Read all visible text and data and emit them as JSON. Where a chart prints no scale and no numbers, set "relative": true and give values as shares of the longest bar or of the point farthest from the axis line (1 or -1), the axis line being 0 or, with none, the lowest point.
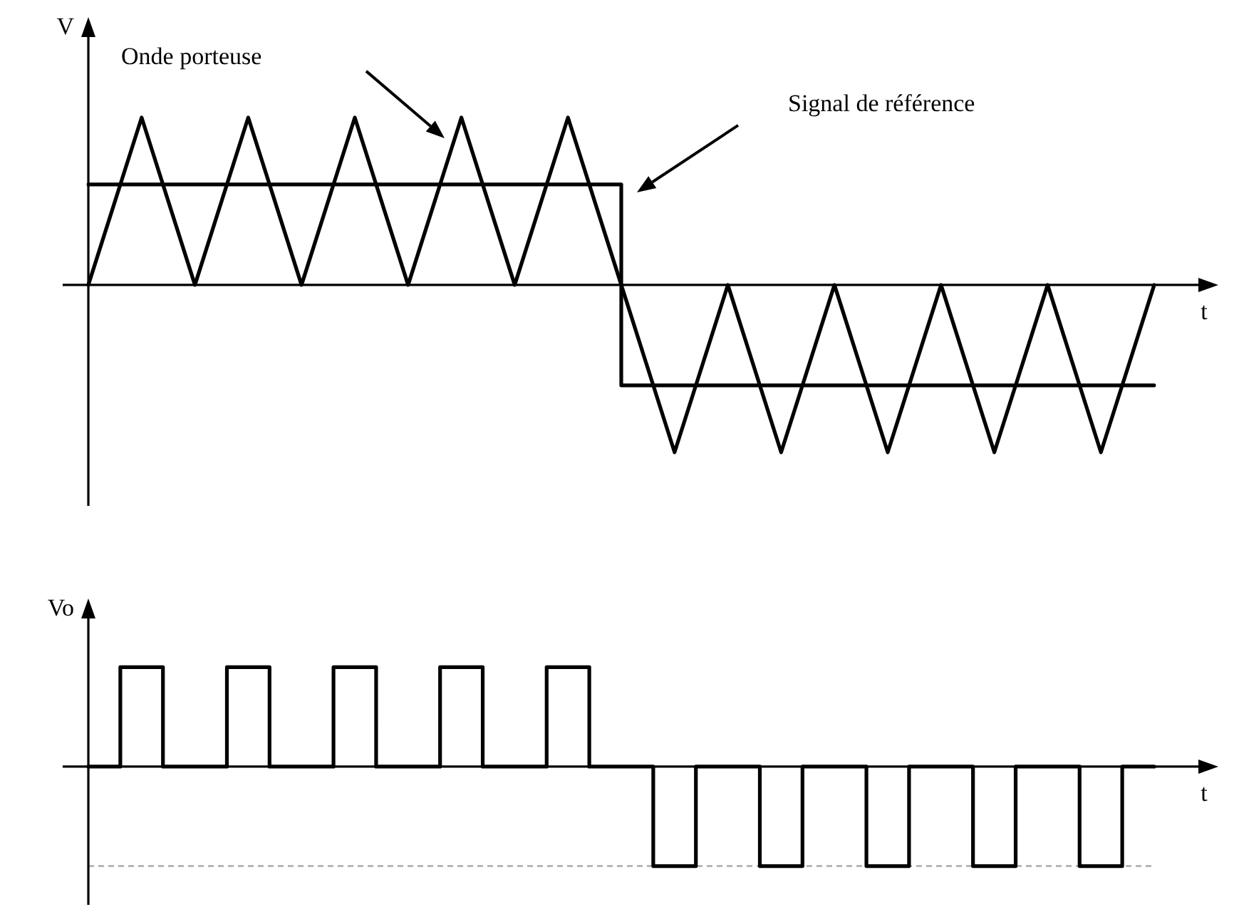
{
  "chart_data": [
    {
      "type": "line",
      "relative": true,
      "ylabel": "V",
      "xlabel": "t",
      "tick_labels": false,
      "marker": "none",
      "categories": [
        null,
        null,
        null,
        null,
        null,
        null,
        null,
        null,
        null,
        null,
        null,
        null,
        null,
        null,
        null,
        null,
        null,
        null,
        null,
        null,
        null
      ],
      "series": [
        {
          "color": "#000000",
          "values": [
            0,
            1,
            0,
            1,
            0,
            1,
            0,
            1,
            0,
            1,
            0,
            -1,
            0,
            -1,
            0,
            -1,
            0,
            -1,
            0,
            -1,
            0
          ]
        },
        {
          "type": "step",
          "color": "#000000",
          "values": [
            0.6,
            0.6,
            0.6,
            0.6,
            0.6,
            0.6,
            0.6,
            0.6,
            0.6,
            0.6,
            -0.6,
            -0.6,
            -0.6,
            -0.6,
            -0.6,
            -0.6,
            -0.6,
            -0.6,
            -0.6,
            -0.6,
            -0.6
          ]
        }
      ],
      "annotations": [
        "Onde porteuse",
        "Signal de référence"
      ]
    },
    {
      "type": "step",
      "relative": true,
      "ylabel": "Vo",
      "xlabel": "t",
      "tick_labels": false,
      "marker": "none",
      "categories": [
        null,
        null,
        null,
        null,
        null,
        null,
        null,
        null,
        null,
        null,
        null,
        null,
        null,
        null,
        null,
        null,
        null,
        null,
        null,
        null,
        null,
        null,
        null,
        null,
        null,
        null,
        null,
        null,
        null,
        null,
        null,
        null,
        null,
        null,
        null,
        null,
        null,
        null,
        null,
        null,
        null,
        null,
        null,
        null,
        null,
        null,
        null,
        null,
        null,
        null,
        null,
        null,
        null,
        null,
        null,
        null,
        null,
        null,
        null,
        null,
        null,
        null,
        null,
        null,
        null,
        null,
        null,
        null,
        null,
        null,
        null,
        null,
        null,
        null,
        null,
        null,
        null,
        null,
        null,
        null,
        null,
        null,
        null,
        null,
        null,
        null,
        null,
        null,
        null,
        null,
        null,
        null,
        null,
        null,
        null,
        null,
        null,
        null,
        null,
        null,
        null
      ],
      "series": [
        {
          "color": "#000000",
          "values": [
            0,
            0,
            0,
            1,
            1,
            1,
            1,
            0,
            0,
            0,
            0,
            0,
            0,
            1,
            1,
            1,
            1,
            0,
            0,
            0,
            0,
            0,
            0,
            1,
            1,
            1,
            1,
            0,
            0,
            0,
            0,
            0,
            0,
            1,
            1,
            1,
            1,
            0,
            0,
            0,
            0,
            0,
            0,
            1,
            1,
            1,
            1,
            0,
            0,
            0,
            0,
            0,
            0,
            -1,
            -1,
            -1,
            -1,
            0,
            0,
            0,
            0,
            0,
            0,
            -1,
            -1,
            -1,
            -1,
            0,
            0,
            0,
            0,
            0,
            0,
            -1,
            -1,
            -1,
            -1,
            0,
            0,
            0,
            0,
            0,
            0,
            -1,
            -1,
            -1,
            -1,
            0,
            0,
            0,
            0,
            0,
            0,
            -1,
            -1,
            -1,
            -1,
            0,
            0,
            0,
            0
          ]
        }
      ],
      "ref_lines": [
        {
          "axis": "y",
          "value": -1,
          "color": "#aaaaaa",
          "line_style": "dashed"
        }
      ]
    }
  ]
}
